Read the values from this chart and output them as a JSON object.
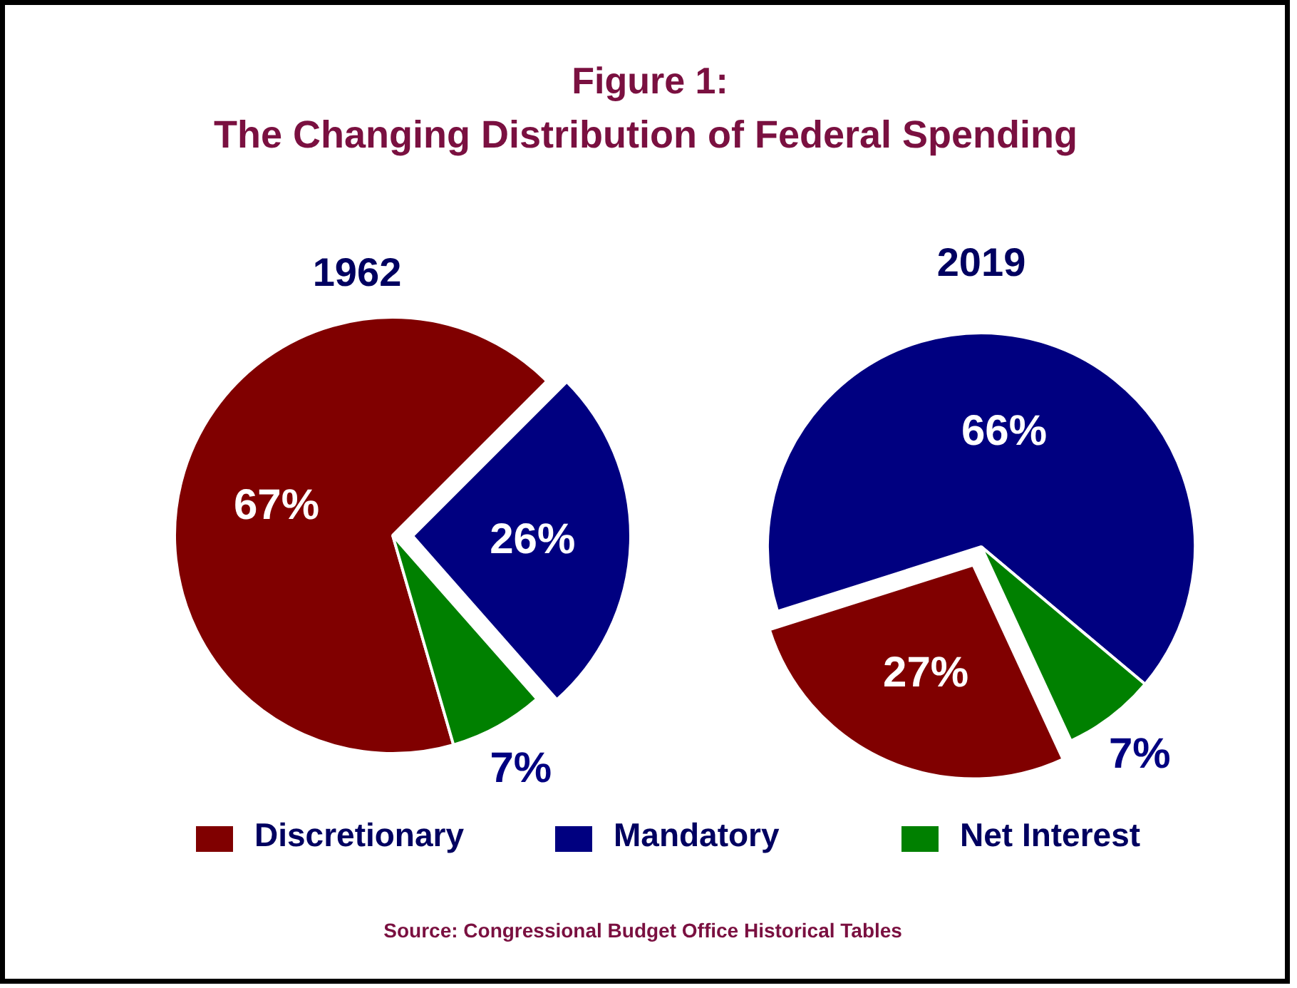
{
  "chart_data": [
    {
      "type": "pie",
      "title": "1962",
      "categories": [
        "Discretionary",
        "Mandatory",
        "Net Interest"
      ],
      "values": [
        67,
        26,
        7
      ],
      "colors": [
        "#800000",
        "#000080",
        "#008000"
      ],
      "value_labels": [
        "67%",
        "26%",
        "7%"
      ],
      "legend": "bottom",
      "annotations": [
        "Figure 1:",
        "The Changing Distribution of Federal Spending"
      ]
    },
    {
      "type": "pie",
      "title": "2019",
      "categories": [
        null,
        null,
        null
      ],
      "values": [
        27,
        66,
        7
      ],
      "colors": [
        "#800000",
        "#000080",
        "#008000"
      ],
      "value_labels": [
        "27%",
        "66%",
        "7%"
      ],
      "annotations": [
        "Source:  Congressional Budget Office Historical Tables"
      ]
    }
  ]
}
